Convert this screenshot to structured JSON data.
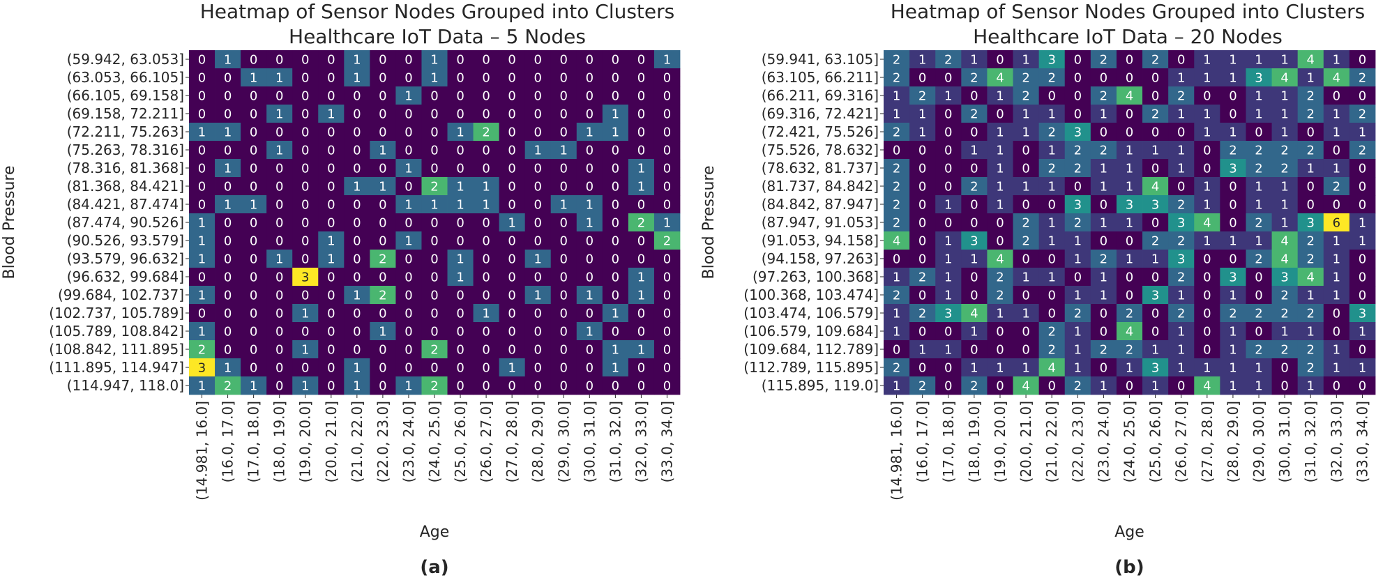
{
  "colors": {
    "viridis": [
      "#440154",
      "#3b528b",
      "#21918c",
      "#5ec962",
      "#fde725"
    ]
  },
  "chart_data": [
    {
      "type": "heatmap",
      "panel_label": "(a)",
      "title": "Heatmap of Sensor Nodes Grouped into Clusters",
      "subtitle": "Healthcare IoT Data – 5 Nodes",
      "xlabel": "Age",
      "ylabel": "Blood Pressure",
      "x_categories": [
        "(14.981, 16.0]",
        "(16.0, 17.0]",
        "(17.0, 18.0]",
        "(18.0, 19.0]",
        "(19.0, 20.0]",
        "(20.0, 21.0]",
        "(21.0, 22.0]",
        "(22.0, 23.0]",
        "(23.0, 24.0]",
        "(24.0, 25.0]",
        "(25.0, 26.0]",
        "(26.0, 27.0]",
        "(27.0, 28.0]",
        "(28.0, 29.0]",
        "(29.0, 30.0]",
        "(30.0, 31.0]",
        "(31.0, 32.0]",
        "(32.0, 33.0]",
        "(33.0, 34.0]"
      ],
      "y_categories": [
        "(59.942, 63.053]",
        "(63.053, 66.105]",
        "(66.105, 69.158]",
        "(69.158, 72.211]",
        "(72.211, 75.263]",
        "(75.263, 78.316]",
        "(78.316, 81.368]",
        "(81.368, 84.421]",
        "(84.421, 87.474]",
        "(87.474, 90.526]",
        "(90.526, 93.579]",
        "(93.579, 96.632]",
        "(96.632, 99.684]",
        "(99.684, 102.737]",
        "(102.737, 105.789]",
        "(105.789, 108.842]",
        "(108.842, 111.895]",
        "(111.895, 114.947]",
        "(114.947, 118.0]"
      ],
      "values": [
        [
          0,
          1,
          0,
          0,
          0,
          0,
          1,
          0,
          0,
          1,
          0,
          0,
          0,
          0,
          0,
          0,
          0,
          0,
          1
        ],
        [
          0,
          0,
          1,
          1,
          0,
          0,
          1,
          0,
          0,
          1,
          0,
          0,
          0,
          0,
          0,
          0,
          0,
          0,
          0
        ],
        [
          0,
          0,
          0,
          0,
          0,
          0,
          0,
          0,
          1,
          0,
          0,
          0,
          0,
          0,
          0,
          0,
          0,
          0,
          0
        ],
        [
          0,
          0,
          0,
          1,
          0,
          1,
          0,
          0,
          0,
          0,
          0,
          0,
          0,
          0,
          0,
          0,
          1,
          0,
          0
        ],
        [
          1,
          1,
          0,
          0,
          0,
          0,
          0,
          0,
          0,
          0,
          1,
          2,
          0,
          0,
          0,
          1,
          1,
          0,
          0
        ],
        [
          0,
          0,
          0,
          1,
          0,
          0,
          0,
          1,
          0,
          0,
          0,
          0,
          0,
          1,
          1,
          0,
          0,
          0,
          0
        ],
        [
          0,
          1,
          0,
          0,
          0,
          0,
          0,
          0,
          1,
          0,
          0,
          0,
          0,
          0,
          0,
          0,
          0,
          1,
          0
        ],
        [
          0,
          0,
          0,
          0,
          0,
          0,
          1,
          1,
          0,
          2,
          1,
          1,
          0,
          0,
          0,
          0,
          0,
          1,
          0
        ],
        [
          0,
          1,
          1,
          0,
          0,
          0,
          0,
          0,
          1,
          1,
          1,
          1,
          0,
          0,
          1,
          1,
          0,
          0,
          0
        ],
        [
          1,
          0,
          0,
          0,
          0,
          0,
          0,
          0,
          0,
          0,
          0,
          0,
          1,
          0,
          0,
          1,
          0,
          2,
          1
        ],
        [
          1,
          0,
          0,
          0,
          0,
          1,
          0,
          0,
          1,
          0,
          0,
          0,
          0,
          0,
          0,
          0,
          0,
          0,
          2
        ],
        [
          1,
          0,
          0,
          1,
          0,
          1,
          0,
          2,
          0,
          0,
          1,
          0,
          0,
          1,
          0,
          0,
          0,
          0,
          0
        ],
        [
          0,
          0,
          0,
          0,
          3,
          0,
          0,
          0,
          0,
          0,
          1,
          0,
          0,
          0,
          0,
          0,
          0,
          1,
          0
        ],
        [
          1,
          0,
          0,
          0,
          0,
          0,
          1,
          2,
          0,
          0,
          0,
          0,
          0,
          1,
          0,
          1,
          0,
          1,
          0
        ],
        [
          0,
          0,
          0,
          0,
          1,
          0,
          0,
          0,
          0,
          0,
          0,
          1,
          0,
          0,
          0,
          0,
          1,
          0,
          0
        ],
        [
          1,
          0,
          0,
          0,
          0,
          0,
          0,
          1,
          0,
          0,
          0,
          0,
          0,
          0,
          0,
          1,
          0,
          0,
          0
        ],
        [
          2,
          0,
          0,
          0,
          1,
          0,
          0,
          0,
          0,
          2,
          0,
          0,
          0,
          0,
          0,
          0,
          1,
          1,
          0
        ],
        [
          3,
          1,
          0,
          0,
          0,
          0,
          1,
          0,
          0,
          0,
          0,
          0,
          1,
          0,
          0,
          0,
          1,
          0,
          0
        ],
        [
          1,
          2,
          1,
          0,
          1,
          0,
          1,
          0,
          1,
          2,
          0,
          0,
          0,
          0,
          0,
          0,
          0,
          0,
          0
        ]
      ],
      "vmin": 0,
      "vmax": 3,
      "colormap": "viridis"
    },
    {
      "type": "heatmap",
      "panel_label": "(b)",
      "title": "Heatmap of Sensor Nodes Grouped into Clusters",
      "subtitle": "Healthcare IoT Data – 20 Nodes",
      "xlabel": "Age",
      "ylabel": "Blood Pressure",
      "x_categories": [
        "(14.981, 16.0]",
        "(16.0, 17.0]",
        "(17.0, 18.0]",
        "(18.0, 19.0]",
        "(19.0, 20.0]",
        "(20.0, 21.0]",
        "(21.0, 22.0]",
        "(22.0, 23.0]",
        "(23.0, 24.0]",
        "(24.0, 25.0]",
        "(25.0, 26.0]",
        "(26.0, 27.0]",
        "(27.0, 28.0]",
        "(28.0, 29.0]",
        "(29.0, 30.0]",
        "(30.0, 31.0]",
        "(31.0, 32.0]",
        "(32.0, 33.0]",
        "(33.0, 34.0]"
      ],
      "y_categories": [
        "(59.941, 63.105]",
        "(63.105, 66.211]",
        "(66.211, 69.316]",
        "(69.316, 72.421]",
        "(72.421, 75.526]",
        "(75.526, 78.632]",
        "(78.632, 81.737]",
        "(81.737, 84.842]",
        "(84.842, 87.947]",
        "(87.947, 91.053]",
        "(91.053, 94.158]",
        "(94.158, 97.263]",
        "(97.263, 100.368]",
        "(100.368, 103.474]",
        "(103.474, 106.579]",
        "(106.579, 109.684]",
        "(109.684, 112.789]",
        "(112.789, 115.895]",
        "(115.895, 119.0]"
      ],
      "values": [
        [
          2,
          1,
          2,
          1,
          0,
          1,
          3,
          0,
          2,
          0,
          2,
          0,
          1,
          1,
          1,
          1,
          4,
          1,
          0
        ],
        [
          2,
          0,
          0,
          2,
          4,
          2,
          2,
          0,
          0,
          0,
          0,
          1,
          1,
          1,
          3,
          4,
          1,
          4,
          2
        ],
        [
          1,
          2,
          1,
          0,
          1,
          2,
          0,
          0,
          2,
          4,
          0,
          2,
          0,
          0,
          1,
          1,
          2,
          0,
          0
        ],
        [
          1,
          1,
          0,
          2,
          0,
          1,
          1,
          0,
          1,
          0,
          2,
          1,
          1,
          0,
          1,
          1,
          2,
          1,
          2
        ],
        [
          2,
          1,
          0,
          0,
          1,
          1,
          2,
          3,
          0,
          0,
          0,
          0,
          1,
          1,
          0,
          1,
          0,
          1,
          1
        ],
        [
          0,
          0,
          0,
          1,
          1,
          0,
          1,
          2,
          2,
          1,
          1,
          1,
          0,
          2,
          2,
          2,
          2,
          0,
          2
        ],
        [
          2,
          0,
          0,
          0,
          1,
          0,
          2,
          2,
          1,
          1,
          0,
          1,
          0,
          3,
          2,
          2,
          1,
          1,
          0
        ],
        [
          2,
          0,
          0,
          2,
          1,
          1,
          1,
          0,
          1,
          1,
          4,
          0,
          1,
          0,
          1,
          1,
          0,
          2,
          0
        ],
        [
          2,
          0,
          1,
          0,
          1,
          0,
          0,
          3,
          0,
          3,
          3,
          2,
          1,
          0,
          1,
          1,
          0,
          0,
          0
        ],
        [
          2,
          0,
          0,
          0,
          0,
          2,
          1,
          2,
          1,
          1,
          0,
          3,
          4,
          0,
          2,
          1,
          3,
          6,
          1
        ],
        [
          4,
          0,
          1,
          3,
          0,
          2,
          1,
          1,
          0,
          0,
          2,
          2,
          1,
          1,
          1,
          4,
          2,
          1,
          1
        ],
        [
          0,
          0,
          1,
          1,
          4,
          0,
          0,
          1,
          2,
          1,
          1,
          3,
          0,
          0,
          2,
          4,
          2,
          1,
          0
        ],
        [
          1,
          2,
          1,
          0,
          2,
          1,
          1,
          0,
          1,
          0,
          0,
          2,
          0,
          3,
          0,
          3,
          4,
          1,
          0
        ],
        [
          2,
          0,
          1,
          0,
          2,
          0,
          0,
          1,
          1,
          0,
          3,
          1,
          0,
          1,
          0,
          2,
          1,
          1,
          0
        ],
        [
          1,
          2,
          3,
          4,
          1,
          1,
          0,
          2,
          0,
          2,
          0,
          2,
          0,
          2,
          2,
          2,
          2,
          0,
          3
        ],
        [
          1,
          0,
          0,
          1,
          0,
          0,
          2,
          1,
          0,
          4,
          0,
          1,
          0,
          1,
          0,
          1,
          1,
          0,
          1
        ],
        [
          0,
          1,
          1,
          0,
          0,
          0,
          2,
          1,
          2,
          2,
          1,
          1,
          0,
          1,
          2,
          2,
          2,
          1,
          0
        ],
        [
          2,
          0,
          0,
          1,
          1,
          1,
          4,
          1,
          0,
          1,
          3,
          1,
          1,
          1,
          1,
          0,
          2,
          1,
          1
        ],
        [
          1,
          2,
          0,
          2,
          0,
          4,
          0,
          2,
          1,
          0,
          1,
          0,
          4,
          1,
          1,
          0,
          1,
          0,
          0
        ]
      ],
      "vmin": 0,
      "vmax": 6,
      "colormap": "viridis"
    }
  ]
}
